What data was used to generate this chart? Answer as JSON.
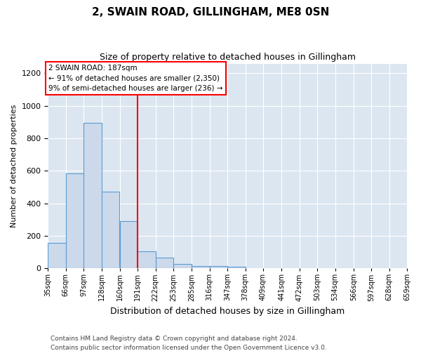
{
  "title": "2, SWAIN ROAD, GILLINGHAM, ME8 0SN",
  "subtitle": "Size of property relative to detached houses in Gillingham",
  "xlabel": "Distribution of detached houses by size in Gillingham",
  "ylabel": "Number of detached properties",
  "bar_color": "#ccd9ea",
  "bar_edge_color": "#5b9bd5",
  "background_color": "#dce6f1",
  "bin_edges": [
    35,
    66,
    97,
    128,
    160,
    191,
    222,
    253,
    285,
    316,
    347,
    378,
    409,
    441,
    472,
    503,
    534,
    566,
    597,
    628,
    659
  ],
  "bar_heights": [
    155,
    585,
    895,
    470,
    290,
    105,
    65,
    28,
    15,
    15,
    10,
    0,
    0,
    0,
    0,
    0,
    0,
    0,
    0,
    0
  ],
  "red_line_x": 191,
  "ylim": [
    0,
    1260
  ],
  "yticks": [
    0,
    200,
    400,
    600,
    800,
    1000,
    1200
  ],
  "annotation_title": "2 SWAIN ROAD: 187sqm",
  "annotation_line1": "← 91% of detached houses are smaller (2,350)",
  "annotation_line2": "9% of semi-detached houses are larger (236) →",
  "footer_line1": "Contains HM Land Registry data © Crown copyright and database right 2024.",
  "footer_line2": "Contains public sector information licensed under the Open Government Licence v3.0."
}
